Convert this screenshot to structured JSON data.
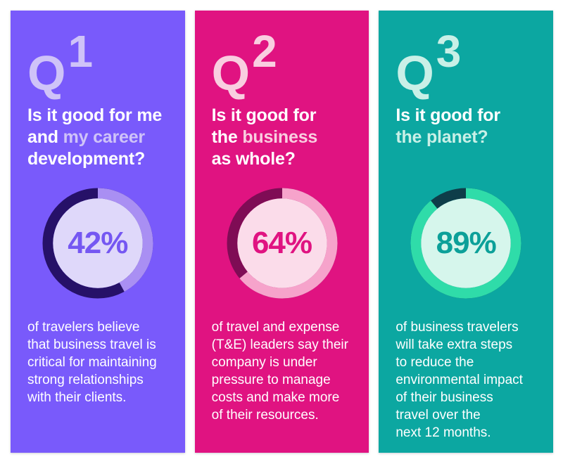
{
  "page": {
    "background": "#FFFFFF"
  },
  "panels": [
    {
      "q_letter": "Q",
      "q_number": "1",
      "title": {
        "line1": "Is it good for me",
        "line2_plain": "and ",
        "line2_highlight": "my career",
        "line3": "development?"
      },
      "percent": "42%",
      "value": 42,
      "body_lines": [
        "of travelers believe",
        "that business travel is",
        "critical for maintaining",
        "strong relationships",
        "with their clients."
      ],
      "colors": {
        "background": "#795AFB",
        "pale": "#CFC3F8",
        "ring_value": "#A98FF3",
        "ring_rest": "#261168",
        "inner_circle": "#DFD8FA",
        "percent_text": "#7557F2",
        "text": "#FFFFFF"
      }
    },
    {
      "q_letter": "Q",
      "q_number": "2",
      "title": {
        "line1": "Is it good for",
        "line2_plain": "the ",
        "line2_highlight": "business",
        "line3": "as whole?"
      },
      "percent": "64%",
      "value": 64,
      "body_lines": [
        "of travel and expense",
        "(T&E) leaders say their",
        "company is under",
        "pressure to manage",
        "costs and make more",
        "of their resources."
      ],
      "colors": {
        "background": "#E01381",
        "pale": "#F9CEE0",
        "ring_value": "#F6A3CB",
        "ring_rest": "#7F0C55",
        "inner_circle": "#FBDCEA",
        "percent_text": "#E01381",
        "text": "#FFFFFF"
      }
    },
    {
      "q_letter": "Q",
      "q_number": "3",
      "title": {
        "line1": "Is it good for",
        "line2_plain": "",
        "line2_highlight": "the planet?",
        "line3": ""
      },
      "percent": "89%",
      "value": 89,
      "body_lines": [
        "of business travelers",
        "will take extra steps",
        "to reduce the",
        "environmental impact",
        "of their business",
        "travel over the",
        "next 12 months."
      ],
      "colors": {
        "background": "#0CA7A1",
        "pale": "#C9F0E7",
        "ring_value": "#2FDCA9",
        "ring_rest": "#0E3D49",
        "inner_circle": "#D6F6EC",
        "percent_text": "#0CA099",
        "text": "#FFFFFF"
      }
    }
  ],
  "chart_data": [
    {
      "type": "pie",
      "subtype": "donut",
      "title": "Q1: Is it good for me and my career development?",
      "center_label": "42%",
      "slices": [
        {
          "label": "value",
          "value": 42
        },
        {
          "label": "remainder",
          "value": 58
        }
      ],
      "start_angle": "top",
      "direction": "clockwise"
    },
    {
      "type": "pie",
      "subtype": "donut",
      "title": "Q2: Is it good for the business as whole?",
      "center_label": "64%",
      "slices": [
        {
          "label": "value",
          "value": 64
        },
        {
          "label": "remainder",
          "value": 36
        }
      ],
      "start_angle": "top",
      "direction": "clockwise"
    },
    {
      "type": "pie",
      "subtype": "donut",
      "title": "Q3: Is it good for the planet?",
      "center_label": "89%",
      "slices": [
        {
          "label": "value",
          "value": 89
        },
        {
          "label": "remainder",
          "value": 11
        }
      ],
      "start_angle": "top",
      "direction": "clockwise"
    }
  ]
}
